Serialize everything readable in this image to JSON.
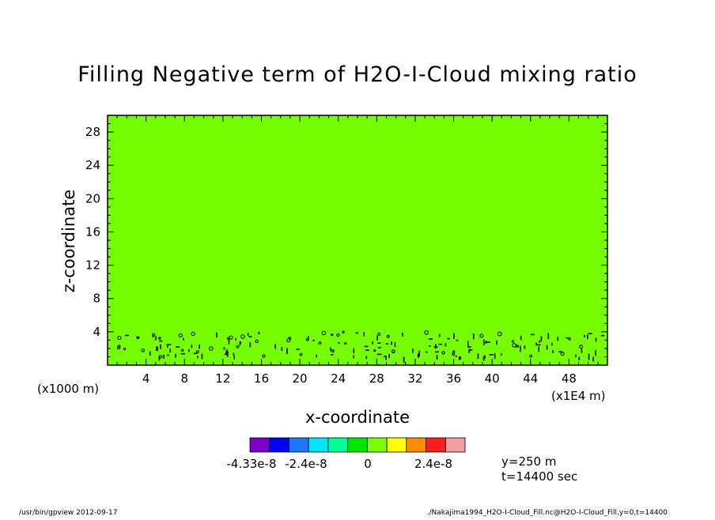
{
  "chart_data": {
    "type": "heatmap",
    "title": "Filling Negative term of H2O-I-Cloud mixing ratio",
    "xlabel": "x-coordinate",
    "ylabel": "z-coordinate",
    "x_unit_left": "(x1000 m)",
    "x_unit_right": "(x1E4 m)",
    "xlim": [
      0,
      52
    ],
    "ylim": [
      0,
      30
    ],
    "x_ticks": [
      4,
      8,
      12,
      16,
      20,
      24,
      28,
      32,
      36,
      40,
      44,
      48
    ],
    "y_ticks": [
      4,
      8,
      12,
      16,
      20,
      24,
      28
    ],
    "field_color": "#76ff00",
    "dominant_value": 0,
    "nonzero_layer_z": [
      1,
      4
    ],
    "colorbar": {
      "colors": [
        "#7b00c8",
        "#0000ff",
        "#1e78ff",
        "#00e5ff",
        "#00ff96",
        "#00e600",
        "#78ff00",
        "#ffff00",
        "#ff8c00",
        "#ff1e1e",
        "#f5a0a0"
      ],
      "tick_labels": [
        "-4.33e-8",
        "-2.4e-8",
        "0",
        "2.4e-8"
      ]
    },
    "info": [
      "y=250 m",
      "t=14400 sec"
    ]
  },
  "footer": {
    "left": "/usr/bin/gpview 2012-09-17",
    "right": "./Nakajima1994_H2O-I-Cloud_Fill.nc@H2O-I-Cloud_Fill,y=0,t=14400"
  }
}
